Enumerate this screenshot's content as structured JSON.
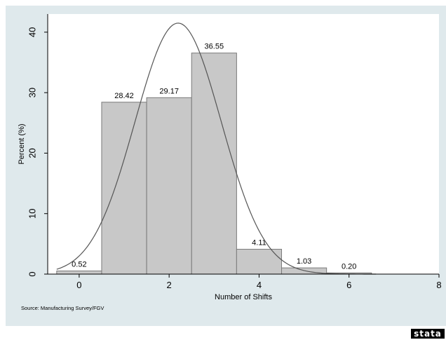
{
  "colors": {
    "background": "#dfe9ec",
    "plot_background": "#ffffff",
    "bar_fill": "#c8c8c8",
    "bar_stroke": "#7a7a7a",
    "curve": "#555555"
  },
  "logo_text": "stata",
  "chart_data": {
    "type": "bar",
    "title": "",
    "xlabel": "Number of Shifts",
    "ylabel": "Percent (%)",
    "note": "Source: Manufacturing Survey/FGV",
    "xlim": [
      -0.7,
      8
    ],
    "ylim": [
      0,
      43
    ],
    "x_ticks": [
      0,
      2,
      4,
      6,
      8
    ],
    "y_ticks": [
      0,
      10,
      20,
      30,
      40
    ],
    "grid": false,
    "bars": [
      {
        "x": 0,
        "value": 0.52,
        "label": "0.52"
      },
      {
        "x": 1,
        "value": 28.42,
        "label": "28.42"
      },
      {
        "x": 2,
        "value": 29.17,
        "label": "29.17"
      },
      {
        "x": 3,
        "value": 36.55,
        "label": "36.55"
      },
      {
        "x": 4,
        "value": 4.11,
        "label": "4.11"
      },
      {
        "x": 5,
        "value": 1.03,
        "label": "1.03"
      },
      {
        "x": 6,
        "value": 0.2,
        "label": "0.20"
      }
    ],
    "normal_curve": {
      "mean": 2.2,
      "sd": 0.96,
      "peak": 41.5,
      "x_range": [
        -0.5,
        6.6
      ]
    }
  }
}
